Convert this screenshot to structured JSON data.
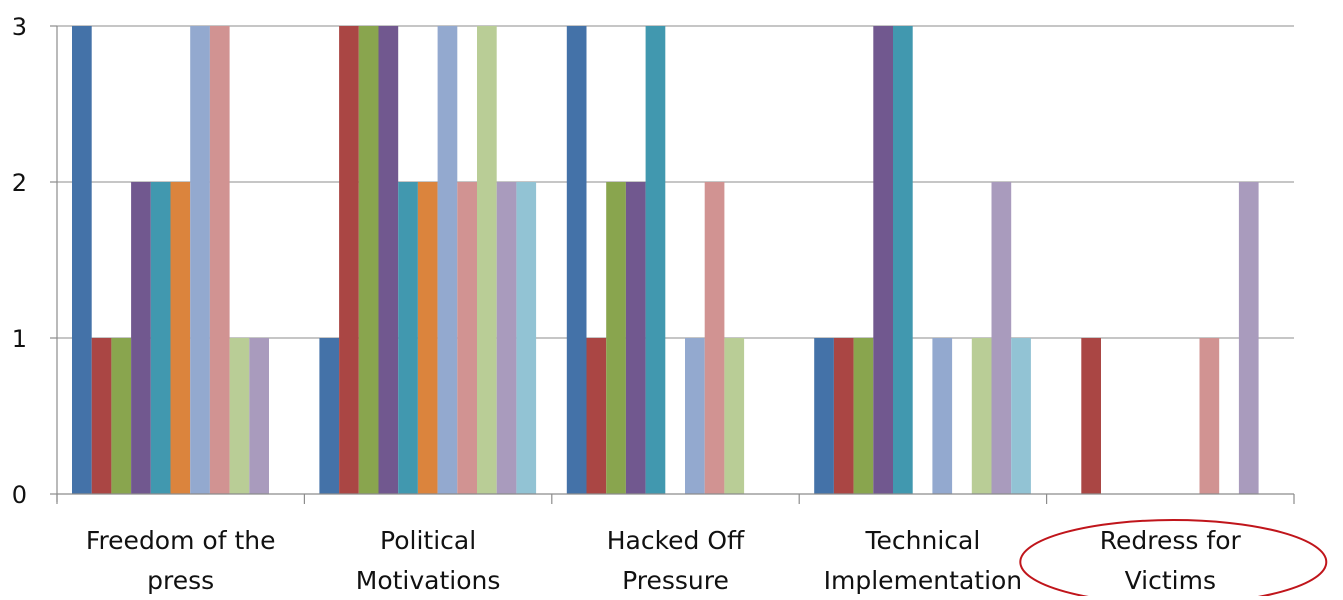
{
  "chart_data": {
    "type": "bar",
    "categories": [
      [
        "Freedom of the",
        "press"
      ],
      [
        "Political",
        "Motivations"
      ],
      [
        "Hacked Off",
        "Pressure"
      ],
      [
        "Technical",
        "Implementation"
      ],
      [
        "Redress for",
        "Victims"
      ]
    ],
    "ylim": [
      0,
      3
    ],
    "yticks": [
      0,
      1,
      2,
      3
    ],
    "grid": true,
    "legend": "none",
    "series": [
      {
        "color": "#4472A8",
        "values": [
          3,
          1,
          3,
          1,
          0
        ]
      },
      {
        "color": "#AA4644",
        "values": [
          1,
          3,
          1,
          1,
          1
        ]
      },
      {
        "color": "#89A54E",
        "values": [
          1,
          3,
          2,
          1,
          0
        ]
      },
      {
        "color": "#71588F",
        "values": [
          2,
          3,
          2,
          3,
          0
        ]
      },
      {
        "color": "#4198AF",
        "values": [
          2,
          2,
          3,
          3,
          0
        ]
      },
      {
        "color": "#DB843D",
        "values": [
          2,
          2,
          0,
          0,
          0
        ]
      },
      {
        "color": "#93A9CF",
        "values": [
          3,
          3,
          1,
          1,
          0
        ]
      },
      {
        "color": "#D19392",
        "values": [
          3,
          2,
          2,
          0,
          1
        ]
      },
      {
        "color": "#B9CD96",
        "values": [
          1,
          3,
          1,
          1,
          0
        ]
      },
      {
        "color": "#A99BBD",
        "values": [
          1,
          2,
          0,
          2,
          2
        ]
      },
      {
        "color": "#92C3D4",
        "values": [
          0,
          2,
          0,
          1,
          0
        ]
      }
    ],
    "highlight": {
      "category_index": 4,
      "shape": "ellipse",
      "color": "#C0151B"
    }
  }
}
